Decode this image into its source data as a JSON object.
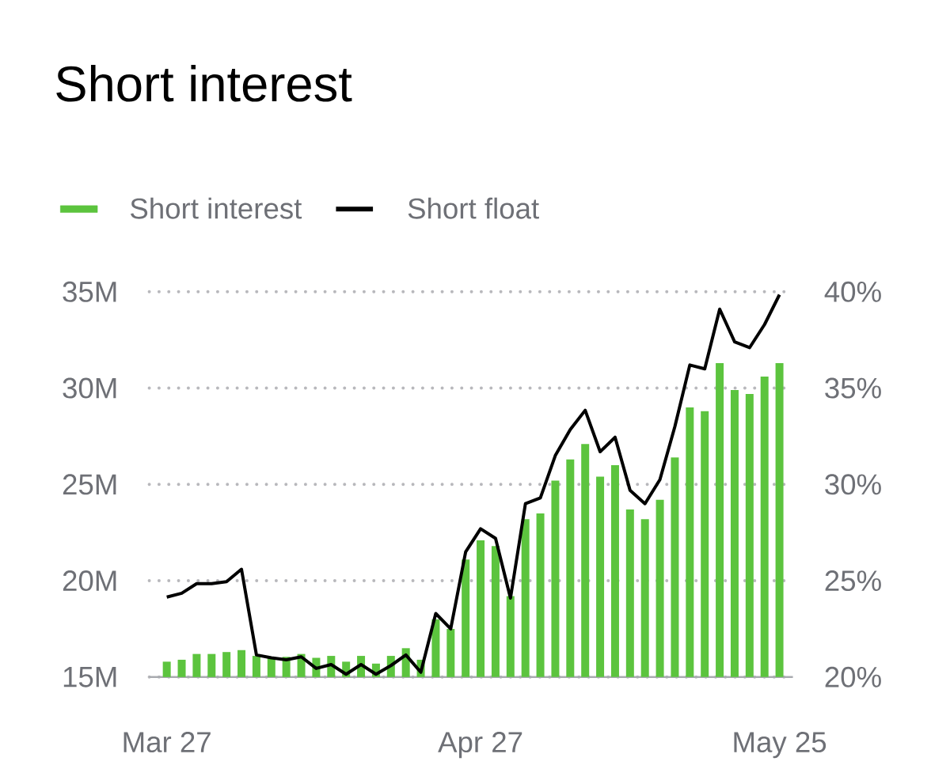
{
  "chart_data": {
    "type": "bar",
    "title": "Short interest",
    "categories": [
      "Mar 27",
      null,
      null,
      null,
      null,
      null,
      null,
      null,
      null,
      null,
      null,
      null,
      null,
      null,
      null,
      null,
      null,
      null,
      null,
      null,
      null,
      "Apr 27",
      null,
      null,
      null,
      null,
      null,
      null,
      null,
      null,
      null,
      null,
      null,
      null,
      null,
      null,
      null,
      null,
      null,
      null,
      null,
      "May 25"
    ],
    "series": [
      {
        "name": "Short interest",
        "type": "bar",
        "color": "#5cc43e",
        "values": [
          15.8,
          15.9,
          16.2,
          16.2,
          16.3,
          16.4,
          16.1,
          16.05,
          16.05,
          16.2,
          16.0,
          16.1,
          15.8,
          16.1,
          15.7,
          16.1,
          16.5,
          15.9,
          18.0,
          17.5,
          21.1,
          22.1,
          21.8,
          19.2,
          23.2,
          23.5,
          25.2,
          26.3,
          27.1,
          25.4,
          26.0,
          23.7,
          23.2,
          24.2,
          26.4,
          29.0,
          28.8,
          31.3,
          29.9,
          29.7,
          30.6,
          31.3
        ]
      },
      {
        "name": "Short float",
        "type": "line",
        "axis": "y2",
        "color": "#000000",
        "values": [
          24.15,
          24.35,
          24.85,
          24.85,
          24.95,
          25.6,
          21.15,
          21.0,
          20.9,
          21.05,
          20.45,
          20.65,
          20.15,
          20.65,
          20.15,
          20.6,
          21.15,
          20.25,
          23.3,
          22.5,
          26.5,
          27.7,
          27.2,
          24.1,
          29.0,
          29.3,
          31.5,
          32.85,
          33.85,
          31.7,
          32.45,
          29.7,
          29.0,
          30.25,
          33.0,
          36.2,
          36.0,
          39.1,
          37.4,
          37.1,
          38.3,
          39.85
        ]
      }
    ],
    "ylim": [
      15,
      35
    ],
    "yticks": [
      {
        "value": 15,
        "label": "15M"
      },
      {
        "value": 20,
        "label": "20M"
      },
      {
        "value": 25,
        "label": "25M"
      },
      {
        "value": 30,
        "label": "30M"
      },
      {
        "value": 35,
        "label": "35M"
      }
    ],
    "y2lim": [
      20,
      40
    ],
    "y2ticks": [
      {
        "value": 20,
        "label": "20%"
      },
      {
        "value": 25,
        "label": "25%"
      },
      {
        "value": 30,
        "label": "30%"
      },
      {
        "value": 35,
        "label": "35%"
      },
      {
        "value": 40,
        "label": "40%"
      }
    ],
    "grid": "y",
    "legend": "top left"
  }
}
